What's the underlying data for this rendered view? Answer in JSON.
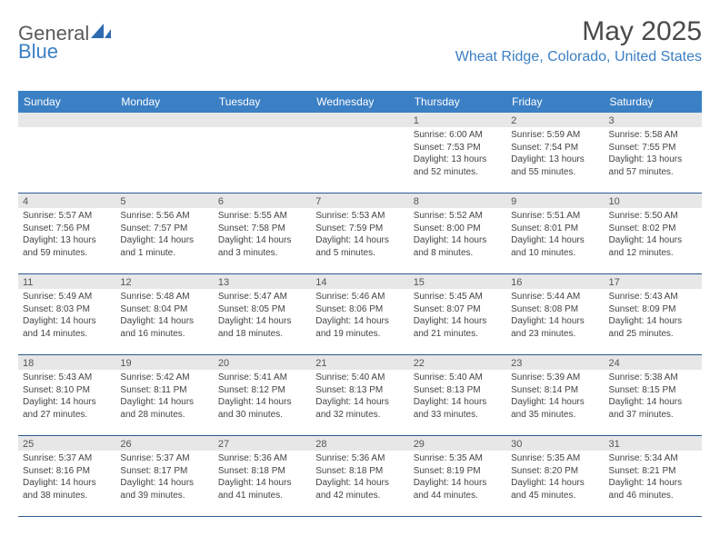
{
  "logo": {
    "word1": "General",
    "word2": "Blue"
  },
  "title": "May 2025",
  "location": "Wheat Ridge, Colorado, United States",
  "header_bg": "#3b7fc4",
  "weekdays": [
    "Sunday",
    "Monday",
    "Tuesday",
    "Wednesday",
    "Thursday",
    "Friday",
    "Saturday"
  ],
  "weeks": [
    [
      {
        "n": "",
        "sr": "",
        "ss": "",
        "dl": ""
      },
      {
        "n": "",
        "sr": "",
        "ss": "",
        "dl": ""
      },
      {
        "n": "",
        "sr": "",
        "ss": "",
        "dl": ""
      },
      {
        "n": "",
        "sr": "",
        "ss": "",
        "dl": ""
      },
      {
        "n": "1",
        "sr": "Sunrise: 6:00 AM",
        "ss": "Sunset: 7:53 PM",
        "dl": "Daylight: 13 hours and 52 minutes."
      },
      {
        "n": "2",
        "sr": "Sunrise: 5:59 AM",
        "ss": "Sunset: 7:54 PM",
        "dl": "Daylight: 13 hours and 55 minutes."
      },
      {
        "n": "3",
        "sr": "Sunrise: 5:58 AM",
        "ss": "Sunset: 7:55 PM",
        "dl": "Daylight: 13 hours and 57 minutes."
      }
    ],
    [
      {
        "n": "4",
        "sr": "Sunrise: 5:57 AM",
        "ss": "Sunset: 7:56 PM",
        "dl": "Daylight: 13 hours and 59 minutes."
      },
      {
        "n": "5",
        "sr": "Sunrise: 5:56 AM",
        "ss": "Sunset: 7:57 PM",
        "dl": "Daylight: 14 hours and 1 minute."
      },
      {
        "n": "6",
        "sr": "Sunrise: 5:55 AM",
        "ss": "Sunset: 7:58 PM",
        "dl": "Daylight: 14 hours and 3 minutes."
      },
      {
        "n": "7",
        "sr": "Sunrise: 5:53 AM",
        "ss": "Sunset: 7:59 PM",
        "dl": "Daylight: 14 hours and 5 minutes."
      },
      {
        "n": "8",
        "sr": "Sunrise: 5:52 AM",
        "ss": "Sunset: 8:00 PM",
        "dl": "Daylight: 14 hours and 8 minutes."
      },
      {
        "n": "9",
        "sr": "Sunrise: 5:51 AM",
        "ss": "Sunset: 8:01 PM",
        "dl": "Daylight: 14 hours and 10 minutes."
      },
      {
        "n": "10",
        "sr": "Sunrise: 5:50 AM",
        "ss": "Sunset: 8:02 PM",
        "dl": "Daylight: 14 hours and 12 minutes."
      }
    ],
    [
      {
        "n": "11",
        "sr": "Sunrise: 5:49 AM",
        "ss": "Sunset: 8:03 PM",
        "dl": "Daylight: 14 hours and 14 minutes."
      },
      {
        "n": "12",
        "sr": "Sunrise: 5:48 AM",
        "ss": "Sunset: 8:04 PM",
        "dl": "Daylight: 14 hours and 16 minutes."
      },
      {
        "n": "13",
        "sr": "Sunrise: 5:47 AM",
        "ss": "Sunset: 8:05 PM",
        "dl": "Daylight: 14 hours and 18 minutes."
      },
      {
        "n": "14",
        "sr": "Sunrise: 5:46 AM",
        "ss": "Sunset: 8:06 PM",
        "dl": "Daylight: 14 hours and 19 minutes."
      },
      {
        "n": "15",
        "sr": "Sunrise: 5:45 AM",
        "ss": "Sunset: 8:07 PM",
        "dl": "Daylight: 14 hours and 21 minutes."
      },
      {
        "n": "16",
        "sr": "Sunrise: 5:44 AM",
        "ss": "Sunset: 8:08 PM",
        "dl": "Daylight: 14 hours and 23 minutes."
      },
      {
        "n": "17",
        "sr": "Sunrise: 5:43 AM",
        "ss": "Sunset: 8:09 PM",
        "dl": "Daylight: 14 hours and 25 minutes."
      }
    ],
    [
      {
        "n": "18",
        "sr": "Sunrise: 5:43 AM",
        "ss": "Sunset: 8:10 PM",
        "dl": "Daylight: 14 hours and 27 minutes."
      },
      {
        "n": "19",
        "sr": "Sunrise: 5:42 AM",
        "ss": "Sunset: 8:11 PM",
        "dl": "Daylight: 14 hours and 28 minutes."
      },
      {
        "n": "20",
        "sr": "Sunrise: 5:41 AM",
        "ss": "Sunset: 8:12 PM",
        "dl": "Daylight: 14 hours and 30 minutes."
      },
      {
        "n": "21",
        "sr": "Sunrise: 5:40 AM",
        "ss": "Sunset: 8:13 PM",
        "dl": "Daylight: 14 hours and 32 minutes."
      },
      {
        "n": "22",
        "sr": "Sunrise: 5:40 AM",
        "ss": "Sunset: 8:13 PM",
        "dl": "Daylight: 14 hours and 33 minutes."
      },
      {
        "n": "23",
        "sr": "Sunrise: 5:39 AM",
        "ss": "Sunset: 8:14 PM",
        "dl": "Daylight: 14 hours and 35 minutes."
      },
      {
        "n": "24",
        "sr": "Sunrise: 5:38 AM",
        "ss": "Sunset: 8:15 PM",
        "dl": "Daylight: 14 hours and 37 minutes."
      }
    ],
    [
      {
        "n": "25",
        "sr": "Sunrise: 5:37 AM",
        "ss": "Sunset: 8:16 PM",
        "dl": "Daylight: 14 hours and 38 minutes."
      },
      {
        "n": "26",
        "sr": "Sunrise: 5:37 AM",
        "ss": "Sunset: 8:17 PM",
        "dl": "Daylight: 14 hours and 39 minutes."
      },
      {
        "n": "27",
        "sr": "Sunrise: 5:36 AM",
        "ss": "Sunset: 8:18 PM",
        "dl": "Daylight: 14 hours and 41 minutes."
      },
      {
        "n": "28",
        "sr": "Sunrise: 5:36 AM",
        "ss": "Sunset: 8:18 PM",
        "dl": "Daylight: 14 hours and 42 minutes."
      },
      {
        "n": "29",
        "sr": "Sunrise: 5:35 AM",
        "ss": "Sunset: 8:19 PM",
        "dl": "Daylight: 14 hours and 44 minutes."
      },
      {
        "n": "30",
        "sr": "Sunrise: 5:35 AM",
        "ss": "Sunset: 8:20 PM",
        "dl": "Daylight: 14 hours and 45 minutes."
      },
      {
        "n": "31",
        "sr": "Sunrise: 5:34 AM",
        "ss": "Sunset: 8:21 PM",
        "dl": "Daylight: 14 hours and 46 minutes."
      }
    ]
  ]
}
